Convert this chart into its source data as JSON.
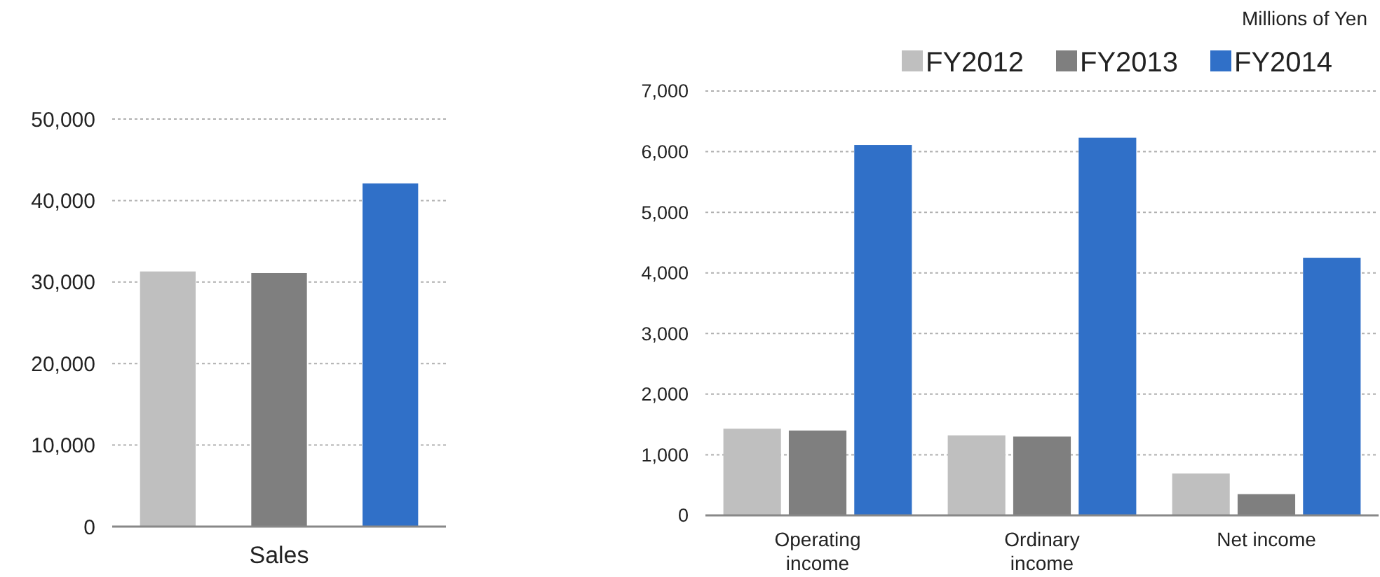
{
  "chart_data": [
    {
      "type": "bar",
      "categories": [
        null,
        null,
        null
      ],
      "xlabel": "Sales",
      "series": [
        {
          "colors": [
            "#bfbfbf",
            "#7f7f7f",
            "#3070c8"
          ],
          "values": [
            31300,
            31100,
            42100
          ]
        }
      ],
      "ylim": [
        0,
        50000
      ],
      "yticks": [
        {
          "value": 0,
          "label": "0"
        },
        {
          "value": 10000,
          "label": "10,000"
        },
        {
          "value": 20000,
          "label": "20,000"
        },
        {
          "value": 30000,
          "label": "30,000"
        },
        {
          "value": 40000,
          "label": "40,000"
        },
        {
          "value": 50000,
          "label": "50,000"
        }
      ],
      "grid": "y",
      "legend": false
    },
    {
      "type": "bar",
      "categories": [
        "Operating income",
        "Ordinary income",
        "Net income"
      ],
      "series": [
        {
          "name": "FY2012",
          "color": "#bfbfbf",
          "values": [
            1430,
            1320,
            690
          ]
        },
        {
          "name": "FY2013",
          "color": "#7f7f7f",
          "values": [
            1400,
            1300,
            350
          ]
        },
        {
          "name": "FY2014",
          "color": "#3070c8",
          "values": [
            6110,
            6230,
            4250
          ]
        }
      ],
      "ylim": [
        0,
        7000
      ],
      "yticks": [
        {
          "value": 0,
          "label": "0"
        },
        {
          "value": 1000,
          "label": "1,000"
        },
        {
          "value": 2000,
          "label": "2,000"
        },
        {
          "value": 3000,
          "label": "3,000"
        },
        {
          "value": 4000,
          "label": "4,000"
        },
        {
          "value": 5000,
          "label": "5,000"
        },
        {
          "value": 6000,
          "label": "6,000"
        },
        {
          "value": 7000,
          "label": "7,000"
        }
      ],
      "grid": "y",
      "legend": "top right",
      "annotations": [
        "Millions of Yen"
      ]
    }
  ]
}
